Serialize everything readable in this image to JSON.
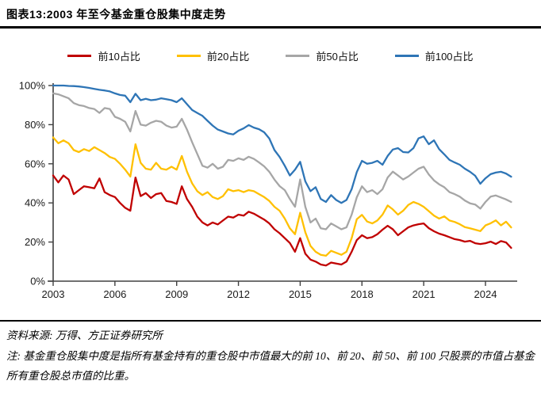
{
  "header": {
    "title": "图表13:2003 年至今基金重仓股集中度走势"
  },
  "chart_data": {
    "type": "line",
    "title": "图表13:2003 年至今基金重仓股集中度走势",
    "x_start": 2003,
    "x_step": 0.25,
    "xlabel": "",
    "ylabel": "",
    "ylim": [
      0,
      100
    ],
    "grid": false,
    "legend_position": "top",
    "xticks": [
      2003,
      2006,
      2009,
      2012,
      2015,
      2018,
      2021,
      2024
    ],
    "ytick_labels": [
      "0%",
      "20%",
      "40%",
      "60%",
      "80%",
      "100%"
    ],
    "ytick_values": [
      0,
      20,
      40,
      60,
      80,
      100
    ],
    "axis_color": "#404040",
    "series": [
      {
        "name": "前10占比",
        "color": "#c00000",
        "values": [
          54,
          50.5,
          54,
          52,
          44.5,
          46.5,
          48.5,
          48,
          47.5,
          52.5,
          45.5,
          44,
          43,
          40,
          37.5,
          36,
          53,
          43.5,
          45,
          42.5,
          44.5,
          45,
          41,
          40.5,
          39.5,
          48.5,
          42,
          38,
          33,
          30,
          28.5,
          30,
          29,
          31,
          33,
          32.5,
          34,
          33.5,
          35.5,
          34.5,
          33,
          31.5,
          29.5,
          26.5,
          24.5,
          22,
          19.5,
          15,
          22,
          14,
          11,
          10,
          8.5,
          8,
          9.5,
          9,
          8.5,
          10,
          15,
          21,
          23.5,
          22,
          22.5,
          24,
          26.3,
          28.3,
          26.5,
          23.5,
          25.5,
          27.5,
          28.5,
          29.1,
          29.5,
          27.1,
          25.5,
          24.3,
          23.5,
          22.5,
          21.5,
          21,
          20.2,
          20.6,
          19.4,
          19,
          19.4,
          20.2,
          19,
          20.5,
          19.8,
          17
        ]
      },
      {
        "name": "前20占比",
        "color": "#ffc000",
        "values": [
          73.5,
          70.5,
          72,
          70.5,
          67,
          66,
          67.5,
          66.5,
          68.5,
          67,
          65.5,
          63.5,
          62.5,
          60,
          57,
          53.5,
          70,
          60.5,
          57.5,
          57,
          60.5,
          57.5,
          57,
          58.5,
          57,
          64,
          56,
          50,
          46,
          44,
          45.5,
          43,
          42,
          43.5,
          47,
          46,
          46.5,
          45.5,
          46.5,
          46,
          44.5,
          43,
          41,
          38,
          36,
          32,
          27,
          24,
          35,
          25,
          18,
          15,
          13.5,
          13,
          15.5,
          14.5,
          13.5,
          15,
          22,
          31.7,
          33.9,
          30.5,
          29.5,
          31,
          34,
          38.7,
          36.7,
          34,
          36,
          39,
          40.5,
          39.5,
          38,
          35.8,
          33.5,
          32,
          33.1,
          31,
          30.3,
          29.1,
          27.6,
          27,
          26.3,
          25.6,
          28.5,
          29.6,
          31.1,
          28.5,
          30.4,
          27.5
        ]
      },
      {
        "name": "前50占比",
        "color": "#a6a6a6",
        "values": [
          96,
          95.5,
          94.5,
          93.5,
          91,
          90,
          89.5,
          88.5,
          88,
          86,
          88.5,
          88,
          84,
          83,
          81.5,
          76.5,
          87,
          80,
          79.5,
          81,
          82,
          81.5,
          79.5,
          78.5,
          79,
          83,
          77.5,
          71,
          65,
          59,
          58,
          60,
          57.5,
          58.5,
          62,
          61.5,
          62.8,
          62,
          63.6,
          62.5,
          60.7,
          58.7,
          55.9,
          51.9,
          48.6,
          46.5,
          42,
          38,
          52,
          38,
          30,
          32,
          27,
          26.5,
          29.5,
          28,
          26.5,
          27.5,
          34,
          42.9,
          48.5,
          45.5,
          46.5,
          44.5,
          47,
          53,
          56,
          54,
          52,
          53.5,
          55.5,
          57.5,
          58.5,
          54.5,
          51.5,
          49.5,
          48,
          45.5,
          44.5,
          43.2,
          41.2,
          39.8,
          39.2,
          37.1,
          40.5,
          43.2,
          43.8,
          42.8,
          41.8,
          40.5
        ]
      },
      {
        "name": "前100占比",
        "color": "#2e75b6",
        "values": [
          100,
          100,
          100,
          99.8,
          99.7,
          99.5,
          99.2,
          98.8,
          98.3,
          97.8,
          97.5,
          97,
          96,
          95.2,
          94.8,
          91.5,
          95.8,
          92.5,
          93.2,
          92.5,
          92.8,
          93.5,
          93,
          92.5,
          91.5,
          93.5,
          90.5,
          87.5,
          86,
          84.5,
          82,
          79.5,
          77.5,
          76.5,
          75.5,
          75,
          76.9,
          78.1,
          79.8,
          78.5,
          77.7,
          76.1,
          72.9,
          67,
          63.5,
          59,
          54,
          57,
          61,
          51,
          46,
          48,
          42,
          40.5,
          44,
          41.5,
          40,
          41.5,
          47,
          55.8,
          61.5,
          60,
          60.5,
          61.5,
          59.5,
          64,
          67.3,
          68,
          66,
          65.8,
          68,
          73,
          74,
          70,
          72,
          67.5,
          64.8,
          62,
          60.7,
          59.5,
          57.5,
          55.9,
          53.9,
          49.8,
          52.6,
          54.7,
          55.5,
          55.9,
          55,
          53.4
        ]
      }
    ]
  },
  "footer": {
    "source": "资料来源: 万得、方正证券研究所",
    "note": "注: 基金重仓股集中度是指所有基金持有的重仓股中市值最大的前 10、前 20、前 50、前 100 只股票的市值占基金所有重仓股总市值的比重。"
  }
}
